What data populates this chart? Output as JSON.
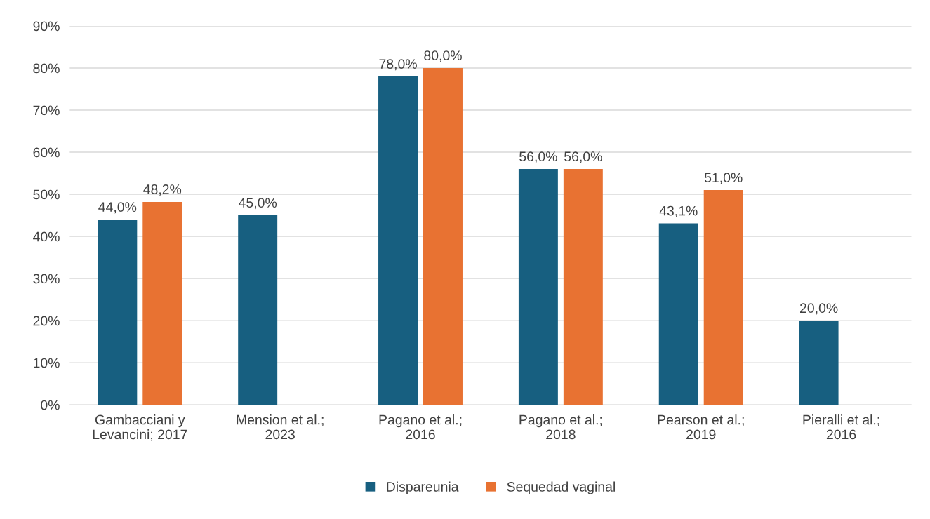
{
  "chart_data": {
    "type": "bar",
    "categories": [
      "Gambacciani y\nLevancini; 2017",
      "Mension et al.;\n2023",
      "Pagano et al.;\n2016",
      "Pagano et al.;\n2018",
      "Pearson et al.;\n2019",
      "Pieralli et al.;\n2016"
    ],
    "series": [
      {
        "name": "Dispareunia",
        "color": "#175f80",
        "values": [
          44.0,
          45.0,
          78.0,
          56.0,
          43.1,
          20.0
        ],
        "value_labels": [
          "44,0%",
          "45,0%",
          "78,0%",
          "56,0%",
          "43,1%",
          "20,0%"
        ]
      },
      {
        "name": "Sequedad vaginal",
        "color": "#e87232",
        "values": [
          48.2,
          null,
          80.0,
          56.0,
          51.0,
          null
        ],
        "value_labels": [
          "48,2%",
          null,
          "80,0%",
          "56,0%",
          "51,0%",
          null
        ]
      }
    ],
    "ylim": [
      0,
      90
    ],
    "yticks": [
      {
        "value": 0,
        "label": "0%"
      },
      {
        "value": 10,
        "label": "10%"
      },
      {
        "value": 20,
        "label": "20%"
      },
      {
        "value": 30,
        "label": "30%"
      },
      {
        "value": 40,
        "label": "40%"
      },
      {
        "value": 50,
        "label": "50%"
      },
      {
        "value": 60,
        "label": "60%"
      },
      {
        "value": 70,
        "label": "70%"
      },
      {
        "value": 80,
        "label": "80%"
      },
      {
        "value": 90,
        "label": "90%"
      }
    ],
    "grid": "y",
    "legend": "bottom"
  }
}
